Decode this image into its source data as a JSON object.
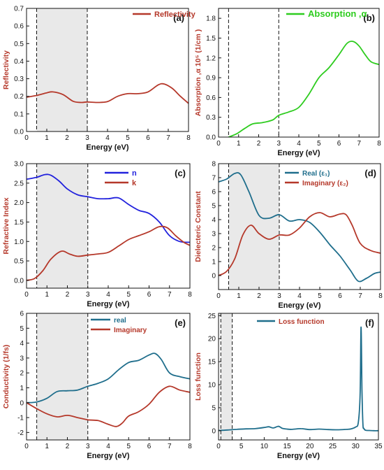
{
  "colors": {
    "red": "#b5382a",
    "green": "#2ecc1f",
    "blue": "#2222dd",
    "teal": "#1f6e8c",
    "band_fill": "#e9e9e9"
  },
  "chart_data": [
    {
      "id": "a",
      "type": "line",
      "panel_label": "(a)",
      "xlabel": "Energy (eV)",
      "ylabel": "Reflectivity",
      "xlim": [
        0,
        8
      ],
      "ylim": [
        0,
        0.7
      ],
      "xticks": [
        "0",
        "1",
        "2",
        "3",
        "4",
        "5",
        "6",
        "7",
        "8"
      ],
      "yticks": [
        "0.0",
        "0.1",
        "0.2",
        "0.3",
        "0.4",
        "0.5",
        "0.6",
        "0.7"
      ],
      "band": [
        0.5,
        3.0
      ],
      "vlines": [
        0.5,
        3.0
      ],
      "legend": {
        "position": "top-right"
      },
      "series": [
        {
          "name": "Reflectivity",
          "color_key": "red",
          "x": [
            0,
            0.5,
            1.0,
            1.3,
            1.8,
            2.3,
            2.7,
            3.0,
            3.5,
            4.0,
            4.5,
            5.0,
            5.5,
            6.0,
            6.5,
            6.8,
            7.2,
            7.6,
            8.0
          ],
          "y": [
            0.195,
            0.205,
            0.22,
            0.225,
            0.21,
            0.172,
            0.165,
            0.168,
            0.165,
            0.17,
            0.2,
            0.215,
            0.215,
            0.225,
            0.265,
            0.27,
            0.245,
            0.2,
            0.16
          ]
        }
      ]
    },
    {
      "id": "b",
      "type": "line",
      "panel_label": "(b)",
      "xlabel": "Energy (eV)",
      "ylabel": "Absorption ,α 10⁵ (1/cm )",
      "xlim": [
        0,
        8
      ],
      "ylim": [
        0,
        1.95
      ],
      "xticks": [
        "0",
        "1",
        "2",
        "3",
        "4",
        "5",
        "6",
        "7",
        "8"
      ],
      "yticks": [
        "0.0",
        "0.3",
        "0.6",
        "0.9",
        "1.2",
        "1.5",
        "1.8"
      ],
      "band": null,
      "vlines": [
        0.5,
        3.0
      ],
      "legend": {
        "position": "top-right"
      },
      "series": [
        {
          "name": "Absorption ,α",
          "color_key": "green",
          "x": [
            0.5,
            0.9,
            1.3,
            1.7,
            2.2,
            2.7,
            3.0,
            3.5,
            4.0,
            4.5,
            5.0,
            5.5,
            6.0,
            6.4,
            6.7,
            7.0,
            7.3,
            7.6,
            8.0
          ],
          "y": [
            0.0,
            0.05,
            0.13,
            0.2,
            0.22,
            0.26,
            0.33,
            0.38,
            0.45,
            0.65,
            0.9,
            1.05,
            1.25,
            1.42,
            1.45,
            1.38,
            1.25,
            1.14,
            1.1
          ]
        }
      ]
    },
    {
      "id": "c",
      "type": "line",
      "panel_label": "(c)",
      "xlabel": "Energy (eV)",
      "ylabel": "Refractive Index",
      "xlim": [
        0,
        8
      ],
      "ylim": [
        -0.2,
        3.0
      ],
      "xticks": [
        "0",
        "1",
        "2",
        "3",
        "4",
        "5",
        "6",
        "7",
        "8"
      ],
      "yticks": [
        "0.0",
        "0.5",
        "1.0",
        "1.5",
        "2.0",
        "2.5",
        "3.0"
      ],
      "band": [
        0.5,
        3.0
      ],
      "vlines": [
        0.5,
        3.0
      ],
      "legend": {
        "position": "top-right"
      },
      "series": [
        {
          "name": "n",
          "color_key": "blue",
          "x": [
            0,
            0.5,
            0.9,
            1.2,
            1.6,
            2.0,
            2.5,
            3.0,
            3.5,
            4.0,
            4.5,
            5.0,
            5.5,
            6.0,
            6.5,
            7.0,
            7.5,
            8.0
          ],
          "y": [
            2.6,
            2.65,
            2.72,
            2.7,
            2.55,
            2.35,
            2.2,
            2.15,
            2.1,
            2.1,
            2.12,
            1.95,
            1.8,
            1.72,
            1.5,
            1.15,
            1.0,
            0.98
          ]
        },
        {
          "name": "k",
          "color_key": "red",
          "x": [
            0,
            0.4,
            0.8,
            1.2,
            1.7,
            2.1,
            2.5,
            3.0,
            3.5,
            4.0,
            4.5,
            5.0,
            5.5,
            6.0,
            6.5,
            6.9,
            7.3,
            7.7,
            8.0
          ],
          "y": [
            0.0,
            0.05,
            0.25,
            0.55,
            0.75,
            0.68,
            0.62,
            0.65,
            0.68,
            0.72,
            0.88,
            1.05,
            1.15,
            1.25,
            1.38,
            1.35,
            1.15,
            0.98,
            0.9
          ]
        }
      ]
    },
    {
      "id": "d",
      "type": "line",
      "panel_label": "(d)",
      "xlabel": "Energy (eV)",
      "ylabel": "Dielecteric Constant",
      "xlim": [
        0,
        8
      ],
      "ylim": [
        -1,
        8
      ],
      "xticks": [
        "0",
        "1",
        "2",
        "3",
        "4",
        "5",
        "6",
        "7",
        "8"
      ],
      "yticks": [
        "0",
        "1",
        "2",
        "3",
        "4",
        "5",
        "6",
        "7",
        "8"
      ],
      "band": [
        0.5,
        3.0
      ],
      "vlines": [
        0.5,
        3.0
      ],
      "legend": {
        "position": "top-right"
      },
      "series": [
        {
          "name": "Real (ε₁)",
          "color_key": "teal",
          "x": [
            0,
            0.4,
            0.8,
            1.1,
            1.5,
            2.0,
            2.5,
            3.0,
            3.5,
            4.0,
            4.5,
            5.0,
            5.5,
            6.0,
            6.5,
            6.9,
            7.3,
            7.7,
            8.0
          ],
          "y": [
            6.7,
            6.9,
            7.3,
            7.2,
            6.0,
            4.3,
            4.1,
            4.35,
            3.9,
            4.0,
            3.8,
            3.1,
            2.2,
            1.4,
            0.4,
            -0.4,
            -0.2,
            0.15,
            0.25
          ]
        },
        {
          "name": "Imaginary (ε₂)",
          "color_key": "red",
          "x": [
            0,
            0.4,
            0.8,
            1.2,
            1.6,
            2.0,
            2.5,
            3.0,
            3.5,
            4.0,
            4.5,
            5.0,
            5.5,
            6.0,
            6.3,
            6.6,
            7.0,
            7.5,
            8.0
          ],
          "y": [
            0.0,
            0.3,
            1.2,
            2.9,
            3.6,
            3.0,
            2.6,
            2.9,
            2.9,
            3.4,
            4.2,
            4.5,
            4.2,
            4.4,
            4.35,
            3.6,
            2.3,
            1.8,
            1.6
          ]
        }
      ]
    },
    {
      "id": "e",
      "type": "line",
      "panel_label": "(e)",
      "xlabel": "Energy (eV)",
      "ylabel": "Conductivity (1/fs)",
      "xlim": [
        0,
        8
      ],
      "ylim": [
        -2.5,
        6
      ],
      "xticks": [
        "0",
        "1",
        "2",
        "3",
        "4",
        "5",
        "6",
        "7",
        "8"
      ],
      "yticks": [
        "-2",
        "-1",
        "0",
        "1",
        "2",
        "3",
        "4",
        "5",
        "6"
      ],
      "band": [
        0.5,
        3.0
      ],
      "vlines": [
        0.5,
        3.0
      ],
      "legend": {
        "position": "top-left"
      },
      "series": [
        {
          "name": "real",
          "color_key": "teal",
          "x": [
            0,
            0.5,
            1.0,
            1.5,
            2.0,
            2.5,
            3.0,
            3.5,
            4.0,
            4.5,
            5.0,
            5.5,
            6.0,
            6.3,
            6.6,
            7.0,
            7.5,
            8.0
          ],
          "y": [
            0.0,
            0.05,
            0.3,
            0.75,
            0.8,
            0.85,
            1.1,
            1.3,
            1.6,
            2.2,
            2.7,
            2.85,
            3.2,
            3.3,
            2.9,
            2.0,
            1.75,
            1.6
          ]
        },
        {
          "name": "Imaginary",
          "color_key": "red",
          "x": [
            0,
            0.5,
            1.0,
            1.5,
            2.0,
            2.5,
            3.0,
            3.5,
            4.0,
            4.4,
            4.7,
            5.0,
            5.5,
            6.0,
            6.5,
            7.0,
            7.5,
            8.0
          ],
          "y": [
            0.0,
            -0.4,
            -0.75,
            -0.95,
            -0.85,
            -1.0,
            -1.15,
            -1.2,
            -1.45,
            -1.6,
            -1.35,
            -0.9,
            -0.6,
            -0.1,
            0.7,
            1.1,
            0.85,
            0.7
          ]
        }
      ]
    },
    {
      "id": "f",
      "type": "line",
      "panel_label": "(f)",
      "xlabel": "Energy (eV)",
      "ylabel": "Loss function",
      "xlim": [
        0,
        35
      ],
      "ylim": [
        -2,
        25.5
      ],
      "xticks": [
        "0",
        "5",
        "10",
        "15",
        "20",
        "25",
        "30",
        "35"
      ],
      "yticks": [
        "0",
        "5",
        "10",
        "15",
        "20",
        "25"
      ],
      "band": [
        0.5,
        3.0
      ],
      "vlines": [
        0.5,
        3.0
      ],
      "legend": {
        "position": "top-center"
      },
      "series": [
        {
          "name": "Loss function",
          "color_key": "teal",
          "x": [
            0,
            2,
            4,
            6,
            8,
            10,
            11,
            12,
            13,
            13.5,
            14,
            15,
            16,
            18,
            20,
            22,
            24,
            26,
            28,
            29,
            30,
            30.6,
            31.0,
            31.2,
            31.4,
            31.6,
            31.8,
            32.2,
            33,
            34,
            35
          ],
          "y": [
            0.05,
            0.15,
            0.3,
            0.4,
            0.45,
            0.7,
            0.85,
            0.6,
            0.95,
            0.8,
            0.5,
            0.35,
            0.3,
            0.45,
            0.25,
            0.35,
            0.25,
            0.2,
            0.3,
            0.4,
            0.8,
            1.8,
            8.0,
            22.5,
            9.0,
            1.5,
            0.5,
            0.1,
            0.05,
            0.0,
            0.0
          ]
        }
      ]
    }
  ]
}
